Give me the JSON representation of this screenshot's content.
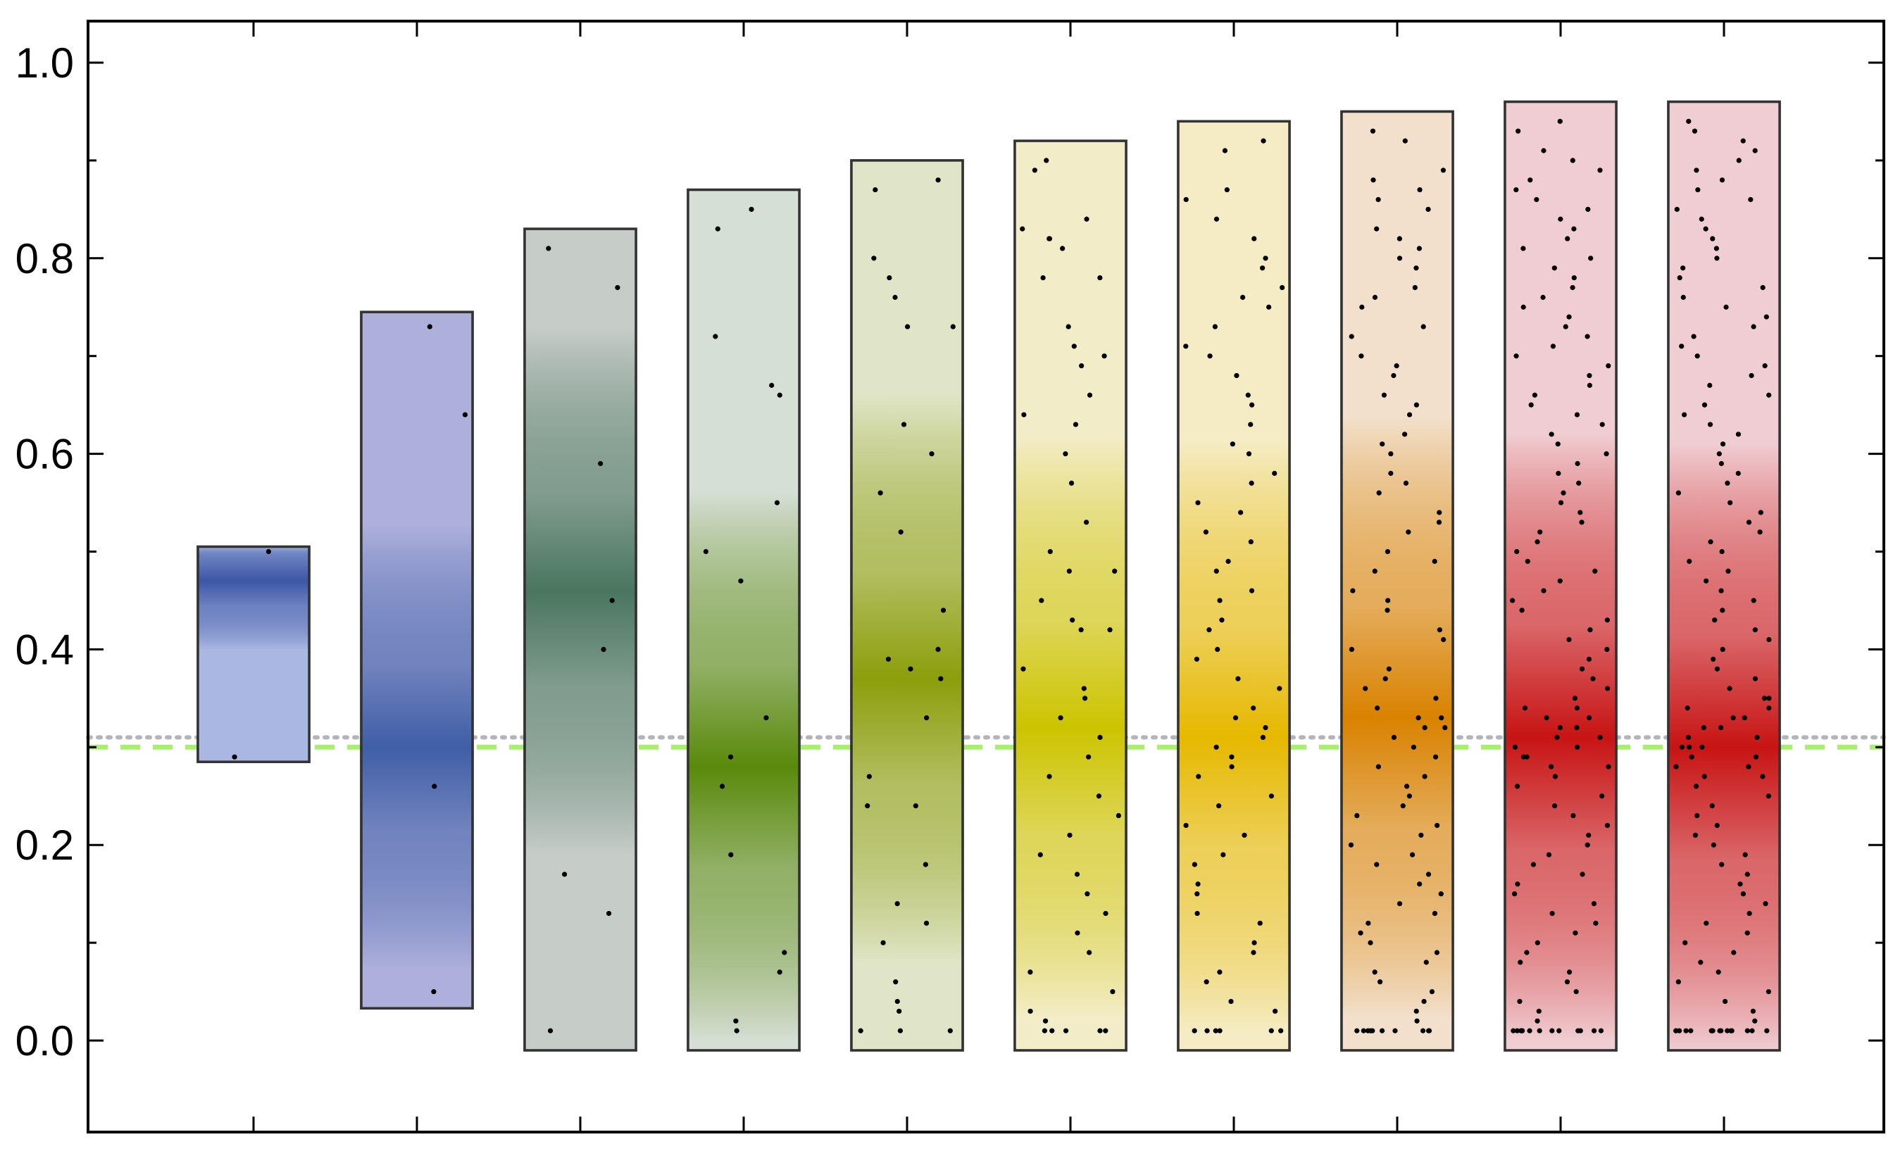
{
  "chart_data": {
    "type": "box",
    "title": "",
    "xlabel": "",
    "ylabel": "",
    "ylim": [
      -0.09,
      1.05
    ],
    "y_ticks": [
      0.0,
      0.2,
      0.4,
      0.6,
      0.8,
      1.0
    ],
    "y_tick_labels": [
      "0.0",
      "0.2",
      "0.4",
      "0.6",
      "0.8",
      "1.0"
    ],
    "x_tick_count": 10,
    "grid": false,
    "reference_lines": [
      {
        "y": 0.3,
        "style": "dashed",
        "color": "#a8ef6e"
      },
      {
        "y": 0.31,
        "style": "dotted",
        "color": "#b4b4bc"
      }
    ],
    "distributions": [
      {
        "low": 0.285,
        "high": 0.505,
        "peak": 0.47,
        "color": "#3d57a6",
        "base": "#a9b7e2",
        "points": [
          0.5,
          0.29
        ]
      },
      {
        "low": 0.033,
        "high": 0.745,
        "peak": 0.3,
        "color": "#405fa6",
        "base": "#aeb0dc",
        "points": [
          0.73,
          0.64,
          0.26,
          0.05
        ]
      },
      {
        "low": -0.01,
        "high": 0.83,
        "peak": 0.46,
        "color": "#4a7660",
        "base": "#c6ccc8",
        "points": [
          0.81,
          0.77,
          0.59,
          0.45,
          0.4,
          0.17,
          0.13,
          0.01
        ]
      },
      {
        "low": -0.01,
        "high": 0.87,
        "peak": 0.28,
        "color": "#5a8a0c",
        "base": "#d6dfd6",
        "points": [
          0.85,
          0.83,
          0.72,
          0.67,
          0.66,
          0.55,
          0.5,
          0.47,
          0.33,
          0.29,
          0.26,
          0.19,
          0.09,
          0.07,
          0.02,
          0.01
        ]
      },
      {
        "low": -0.01,
        "high": 0.9,
        "peak": 0.37,
        "color": "#8c9e0c",
        "base": "#e0e5c8",
        "points": [
          0.88,
          0.87,
          0.8,
          0.78,
          0.76,
          0.73,
          0.73,
          0.63,
          0.6,
          0.56,
          0.52,
          0.44,
          0.4,
          0.39,
          0.38,
          0.37,
          0.33,
          0.27,
          0.24,
          0.24,
          0.18,
          0.14,
          0.12,
          0.1,
          0.06,
          0.04,
          0.03,
          0.01,
          0.01,
          0.01
        ]
      },
      {
        "low": -0.01,
        "high": 0.92,
        "peak": 0.32,
        "color": "#ccc400",
        "base": "#f3ecc8",
        "points": [
          0.9,
          0.89,
          0.84,
          0.83,
          0.82,
          0.82,
          0.81,
          0.78,
          0.78,
          0.73,
          0.71,
          0.7,
          0.69,
          0.66,
          0.64,
          0.63,
          0.6,
          0.57,
          0.53,
          0.5,
          0.48,
          0.48,
          0.45,
          0.43,
          0.42,
          0.42,
          0.38,
          0.36,
          0.35,
          0.33,
          0.31,
          0.29,
          0.27,
          0.25,
          0.23,
          0.21,
          0.19,
          0.17,
          0.15,
          0.13,
          0.11,
          0.09,
          0.07,
          0.05,
          0.03,
          0.02,
          0.01,
          0.01,
          0.01,
          0.01,
          0.01
        ]
      },
      {
        "low": -0.01,
        "high": 0.94,
        "peak": 0.31,
        "color": "#e6b800",
        "base": "#f5ecc6",
        "points": [
          0.92,
          0.91,
          0.87,
          0.86,
          0.84,
          0.82,
          0.8,
          0.79,
          0.77,
          0.76,
          0.75,
          0.73,
          0.71,
          0.7,
          0.68,
          0.66,
          0.65,
          0.63,
          0.61,
          0.6,
          0.58,
          0.57,
          0.55,
          0.54,
          0.52,
          0.51,
          0.49,
          0.48,
          0.46,
          0.45,
          0.43,
          0.42,
          0.4,
          0.39,
          0.37,
          0.36,
          0.34,
          0.33,
          0.32,
          0.31,
          0.3,
          0.29,
          0.28,
          0.27,
          0.25,
          0.24,
          0.22,
          0.21,
          0.19,
          0.18,
          0.16,
          0.15,
          0.13,
          0.12,
          0.1,
          0.09,
          0.07,
          0.06,
          0.04,
          0.03,
          0.01,
          0.01,
          0.01,
          0.01,
          0.01,
          0.01
        ]
      },
      {
        "low": -0.01,
        "high": 0.95,
        "peak": 0.33,
        "color": "#d98200",
        "base": "#f2e0cc",
        "points": [
          0.93,
          0.92,
          0.89,
          0.88,
          0.87,
          0.86,
          0.85,
          0.83,
          0.82,
          0.81,
          0.8,
          0.79,
          0.77,
          0.76,
          0.75,
          0.73,
          0.72,
          0.7,
          0.69,
          0.68,
          0.66,
          0.65,
          0.64,
          0.62,
          0.61,
          0.6,
          0.58,
          0.57,
          0.56,
          0.54,
          0.53,
          0.52,
          0.5,
          0.49,
          0.48,
          0.46,
          0.45,
          0.44,
          0.42,
          0.41,
          0.4,
          0.38,
          0.37,
          0.36,
          0.35,
          0.34,
          0.33,
          0.33,
          0.32,
          0.32,
          0.31,
          0.3,
          0.29,
          0.28,
          0.27,
          0.26,
          0.25,
          0.24,
          0.23,
          0.22,
          0.21,
          0.2,
          0.19,
          0.18,
          0.17,
          0.16,
          0.15,
          0.14,
          0.13,
          0.12,
          0.11,
          0.1,
          0.09,
          0.08,
          0.07,
          0.06,
          0.05,
          0.04,
          0.03,
          0.02,
          0.01,
          0.01,
          0.01,
          0.01,
          0.01,
          0.01,
          0.01,
          0.01,
          0.01,
          0.01
        ]
      },
      {
        "low": -0.01,
        "high": 0.96,
        "peak": 0.31,
        "color": "#c81414",
        "base": "#f0cdd2",
        "points": [
          0.94,
          0.93,
          0.91,
          0.9,
          0.89,
          0.88,
          0.87,
          0.86,
          0.85,
          0.84,
          0.83,
          0.82,
          0.81,
          0.8,
          0.79,
          0.78,
          0.77,
          0.76,
          0.75,
          0.74,
          0.73,
          0.72,
          0.71,
          0.7,
          0.69,
          0.68,
          0.67,
          0.66,
          0.65,
          0.64,
          0.63,
          0.62,
          0.61,
          0.6,
          0.59,
          0.58,
          0.57,
          0.56,
          0.55,
          0.54,
          0.53,
          0.52,
          0.51,
          0.5,
          0.49,
          0.48,
          0.47,
          0.46,
          0.45,
          0.44,
          0.43,
          0.42,
          0.41,
          0.4,
          0.39,
          0.38,
          0.37,
          0.36,
          0.35,
          0.34,
          0.34,
          0.33,
          0.33,
          0.32,
          0.32,
          0.31,
          0.31,
          0.3,
          0.3,
          0.29,
          0.29,
          0.28,
          0.28,
          0.27,
          0.26,
          0.25,
          0.24,
          0.23,
          0.22,
          0.21,
          0.2,
          0.19,
          0.18,
          0.17,
          0.16,
          0.15,
          0.14,
          0.13,
          0.12,
          0.11,
          0.1,
          0.09,
          0.08,
          0.07,
          0.06,
          0.05,
          0.04,
          0.03,
          0.02,
          0.01,
          0.01,
          0.01,
          0.01,
          0.01,
          0.01,
          0.01,
          0.01,
          0.01,
          0.01,
          0.01,
          0.01,
          0.01
        ]
      },
      {
        "low": -0.01,
        "high": 0.96,
        "peak": 0.3,
        "color": "#c81414",
        "base": "#f0cdd2",
        "points": [
          0.94,
          0.93,
          0.92,
          0.91,
          0.9,
          0.89,
          0.88,
          0.87,
          0.86,
          0.85,
          0.84,
          0.83,
          0.82,
          0.81,
          0.8,
          0.79,
          0.78,
          0.77,
          0.76,
          0.75,
          0.74,
          0.73,
          0.72,
          0.71,
          0.7,
          0.69,
          0.68,
          0.67,
          0.66,
          0.65,
          0.64,
          0.63,
          0.62,
          0.61,
          0.6,
          0.59,
          0.58,
          0.57,
          0.56,
          0.55,
          0.54,
          0.53,
          0.52,
          0.51,
          0.5,
          0.49,
          0.48,
          0.47,
          0.46,
          0.45,
          0.44,
          0.43,
          0.42,
          0.41,
          0.4,
          0.39,
          0.38,
          0.37,
          0.36,
          0.35,
          0.35,
          0.34,
          0.34,
          0.33,
          0.33,
          0.32,
          0.32,
          0.31,
          0.31,
          0.3,
          0.3,
          0.3,
          0.29,
          0.29,
          0.28,
          0.28,
          0.27,
          0.27,
          0.26,
          0.25,
          0.24,
          0.23,
          0.22,
          0.21,
          0.2,
          0.19,
          0.18,
          0.17,
          0.16,
          0.15,
          0.14,
          0.13,
          0.12,
          0.11,
          0.1,
          0.09,
          0.08,
          0.07,
          0.06,
          0.05,
          0.04,
          0.03,
          0.02,
          0.01,
          0.01,
          0.01,
          0.01,
          0.01,
          0.01,
          0.01,
          0.01,
          0.01,
          0.01,
          0.01,
          0.01,
          0.01,
          0.01,
          0.01,
          0.01
        ]
      }
    ]
  }
}
